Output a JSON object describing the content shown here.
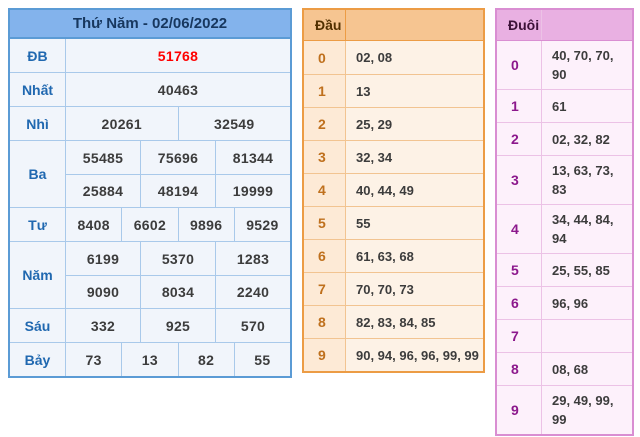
{
  "results": {
    "title": "Thứ Năm - 02/06/2022",
    "rows": [
      {
        "label": "ĐB",
        "special": true,
        "groups": [
          [
            "51768"
          ]
        ]
      },
      {
        "label": "Nhất",
        "special": false,
        "groups": [
          [
            "40463"
          ]
        ]
      },
      {
        "label": "Nhì",
        "special": false,
        "groups": [
          [
            "20261",
            "32549"
          ]
        ]
      },
      {
        "label": "Ba",
        "special": false,
        "groups": [
          [
            "55485",
            "75696",
            "81344"
          ],
          [
            "25884",
            "48194",
            "19999"
          ]
        ]
      },
      {
        "label": "Tư",
        "special": false,
        "groups": [
          [
            "8408",
            "6602",
            "9896",
            "9529"
          ]
        ]
      },
      {
        "label": "Năm",
        "special": false,
        "groups": [
          [
            "6199",
            "5370",
            "1283"
          ],
          [
            "9090",
            "8034",
            "2240"
          ]
        ]
      },
      {
        "label": "Sáu",
        "special": false,
        "groups": [
          [
            "332",
            "925",
            "570"
          ]
        ]
      },
      {
        "label": "Bảy",
        "special": false,
        "groups": [
          [
            "73",
            "13",
            "82",
            "55"
          ]
        ]
      }
    ]
  },
  "dau": {
    "header": "Đầu",
    "rows": [
      {
        "digit": "0",
        "values": "02, 08"
      },
      {
        "digit": "1",
        "values": "13"
      },
      {
        "digit": "2",
        "values": "25, 29"
      },
      {
        "digit": "3",
        "values": "32, 34"
      },
      {
        "digit": "4",
        "values": "40, 44, 49"
      },
      {
        "digit": "5",
        "values": "55"
      },
      {
        "digit": "6",
        "values": "61, 63, 68"
      },
      {
        "digit": "7",
        "values": "70, 70, 73"
      },
      {
        "digit": "8",
        "values": "82, 83, 84, 85"
      },
      {
        "digit": "9",
        "values": "90, 94, 96, 96, 99, 99"
      }
    ]
  },
  "duoi": {
    "header": "Đuôi",
    "rows": [
      {
        "digit": "0",
        "values": "40, 70, 70, 90"
      },
      {
        "digit": "1",
        "values": "61"
      },
      {
        "digit": "2",
        "values": "02, 32, 82"
      },
      {
        "digit": "3",
        "values": "13, 63, 73, 83"
      },
      {
        "digit": "4",
        "values": "34, 44, 84, 94"
      },
      {
        "digit": "5",
        "values": "25, 55, 85"
      },
      {
        "digit": "6",
        "values": "96, 96"
      },
      {
        "digit": "7",
        "values": ""
      },
      {
        "digit": "8",
        "values": "08, 68"
      },
      {
        "digit": "9",
        "values": "29, 49, 99, 99"
      }
    ]
  },
  "colors": {
    "blue_border": "#5b9bd5",
    "blue_inner": "#a9c9ea",
    "blue_header_bg": "#83b3ec",
    "blue_header_text": "#17375e",
    "blue_body_bg": "#f1f5fb",
    "blue_label": "#2068b0",
    "value_text": "#3c3c3c",
    "special_red": "#ff0000",
    "orange_border": "#ec9c45",
    "orange_inner": "#f2c491",
    "orange_header_bg": "#f6c591",
    "orange_header_text": "#513000",
    "orange_body_bg": "#fdead6",
    "orange_vals_bg": "#fdf2e6",
    "orange_digit": "#bf701d",
    "pink_border": "#d98ed2",
    "pink_inner": "#ecc2e6",
    "pink_header_bg": "#e9b0e2",
    "pink_header_text": "#3c1138",
    "pink_body_bg": "#fdf1fb",
    "pink_digit": "#8c188c"
  }
}
